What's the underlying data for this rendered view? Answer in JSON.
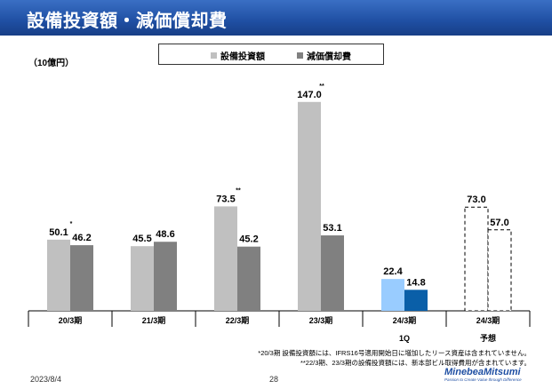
{
  "header": {
    "title": "設備投資額・減価償却費"
  },
  "unit_label": "（10億円）",
  "legend": {
    "capex": {
      "label": "設備投資額",
      "color": "#c0c0c0"
    },
    "depreciation": {
      "label": "減価償却費",
      "color": "#808080"
    }
  },
  "chart_data": {
    "type": "bar",
    "categories": [
      "20/3期",
      "21/3期",
      "22/3期",
      "23/3期",
      "24/3期",
      "24/3期"
    ],
    "category_sublabels": [
      "",
      "",
      "",
      "",
      "1Q",
      "予想"
    ],
    "series": [
      {
        "name": "設備投資額",
        "values": [
          50.1,
          45.5,
          73.5,
          147.0,
          22.4,
          73.0
        ],
        "value_labels": [
          "50.1",
          "45.5",
          "73.5",
          "147.0",
          "22.4",
          "73.0"
        ],
        "marks": [
          "*",
          "",
          "**",
          "**",
          "",
          ""
        ]
      },
      {
        "name": "減価償却費",
        "values": [
          46.2,
          48.6,
          45.2,
          53.1,
          14.8,
          57.0
        ],
        "value_labels": [
          "46.2",
          "48.6",
          "45.2",
          "53.1",
          "14.8",
          "57.0"
        ],
        "marks": [
          "",
          "",
          "",
          "",
          "",
          ""
        ]
      }
    ],
    "ylim": [
      0,
      160
    ],
    "highlight_colors": {
      "capex": "#99ccff",
      "depreciation": "#0a5fa8"
    },
    "forecast_style": "dashed-outline",
    "grid": false
  },
  "footnotes": [
    "*20/3期 設備投資額には、IFRS16号適用開始日に増加したリース資産は含まれていません。",
    "**22/3期、23/3期の設備投資額には、新本部ビル取得費用が含まれています。"
  ],
  "footer": {
    "date": "2023/8/4",
    "page": "28"
  },
  "logo": {
    "name": "MinebeaMitsumi",
    "tagline": "Passion to Create Value through Difference"
  }
}
